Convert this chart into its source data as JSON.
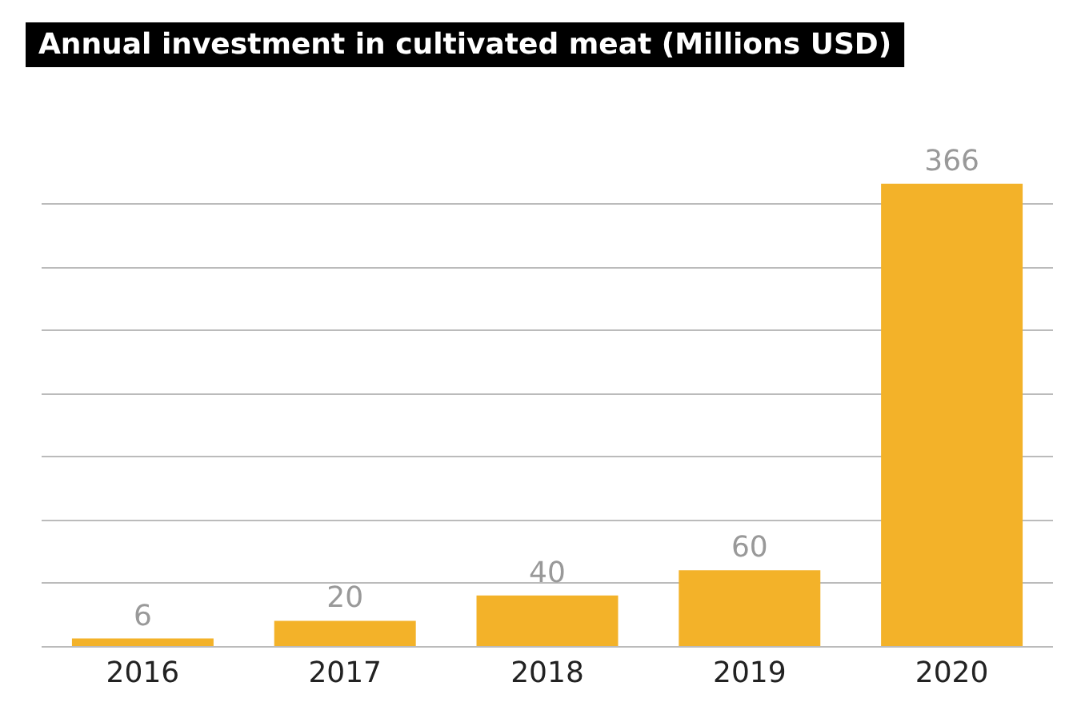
{
  "chart_data": {
    "type": "bar",
    "title": "Annual investment in cultivated meat (Millions USD)",
    "categories": [
      "2016",
      "2017",
      "2018",
      "2019",
      "2020"
    ],
    "values": [
      6,
      20,
      40,
      60,
      366
    ],
    "color": "#f3b229",
    "yticks": [
      0,
      50,
      100,
      150,
      200,
      250,
      300,
      350
    ],
    "grid": "y",
    "tick_labels": "x",
    "data_labels": true
  }
}
